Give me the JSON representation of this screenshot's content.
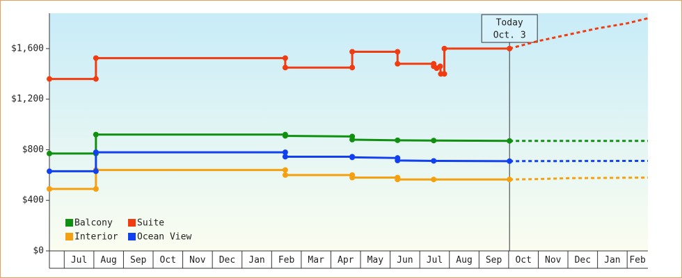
{
  "chart_data": {
    "type": "line",
    "ylim": [
      0,
      1880
    ],
    "yticks": [
      {
        "value": 0,
        "label": "$0"
      },
      {
        "value": 400,
        "label": "$400"
      },
      {
        "value": 800,
        "label": "$800"
      },
      {
        "value": 1200,
        "label": "$1,200"
      },
      {
        "value": 1600,
        "label": "$1,600"
      }
    ],
    "xlim": [
      -0.5,
      19.7
    ],
    "xticks": [
      {
        "value": 0,
        "label": "Jul"
      },
      {
        "value": 1,
        "label": "Aug"
      },
      {
        "value": 2,
        "label": "Sep"
      },
      {
        "value": 3,
        "label": "Oct"
      },
      {
        "value": 4,
        "label": "Nov"
      },
      {
        "value": 5,
        "label": "Dec"
      },
      {
        "value": 6,
        "label": "Jan"
      },
      {
        "value": 7,
        "label": "Feb"
      },
      {
        "value": 8,
        "label": "Mar"
      },
      {
        "value": 9,
        "label": "Apr"
      },
      {
        "value": 10,
        "label": "May"
      },
      {
        "value": 11,
        "label": "Jun"
      },
      {
        "value": 12,
        "label": "Jul"
      },
      {
        "value": 13,
        "label": "Aug"
      },
      {
        "value": 14,
        "label": "Sep"
      },
      {
        "value": 15,
        "label": "Oct"
      },
      {
        "value": 16,
        "label": "Nov"
      },
      {
        "value": 17,
        "label": "Dec"
      },
      {
        "value": 18,
        "label": "Jan"
      },
      {
        "value": 19,
        "label": "Feb"
      }
    ],
    "annotation": {
      "x": 15.03,
      "lines": [
        "Today",
        "Oct. 3"
      ]
    },
    "series": [
      {
        "name": "Balcony",
        "color": "#109010",
        "x": [
          -0.5,
          1.07,
          1.07,
          7.46,
          7.46,
          9.72,
          9.72,
          11.25,
          12.47,
          15.03
        ],
        "values": [
          770,
          770,
          920,
          920,
          910,
          905,
          880,
          875,
          873,
          870
        ],
        "forecast_x": [
          15.03,
          19.7
        ],
        "forecast_values": [
          870,
          870
        ]
      },
      {
        "name": "Suite",
        "color": "#f03c10",
        "x": [
          -0.5,
          1.07,
          1.07,
          7.46,
          7.46,
          9.72,
          9.72,
          11.25,
          11.25,
          12.47,
          12.47,
          12.57,
          12.69,
          12.71,
          12.83,
          12.83,
          15.03
        ],
        "values": [
          1360,
          1360,
          1525,
          1525,
          1450,
          1450,
          1575,
          1575,
          1480,
          1480,
          1460,
          1445,
          1460,
          1400,
          1400,
          1600,
          1600
        ],
        "forecast_x": [
          15.03,
          16,
          17,
          18,
          19,
          19.7
        ],
        "forecast_values": [
          1600,
          1660,
          1710,
          1760,
          1800,
          1840
        ]
      },
      {
        "name": "Interior",
        "color": "#f5a010",
        "x": [
          -0.5,
          1.07,
          1.07,
          7.46,
          7.46,
          9.72,
          9.72,
          11.25,
          11.25,
          12.47,
          15.03
        ],
        "values": [
          490,
          490,
          640,
          640,
          600,
          600,
          580,
          580,
          565,
          565,
          565
        ],
        "forecast_x": [
          15.03,
          16,
          17,
          19.7
        ],
        "forecast_values": [
          565,
          568,
          575,
          580
        ]
      },
      {
        "name": "Ocean View",
        "color": "#1040f0",
        "x": [
          -0.5,
          1.07,
          1.07,
          7.46,
          7.46,
          9.72,
          9.72,
          11.25,
          11.25,
          12.47,
          15.03
        ],
        "values": [
          630,
          630,
          780,
          780,
          745,
          745,
          740,
          735,
          715,
          712,
          710
        ],
        "forecast_x": [
          15.03,
          19.7
        ],
        "forecast_values": [
          710,
          712
        ]
      }
    ]
  }
}
